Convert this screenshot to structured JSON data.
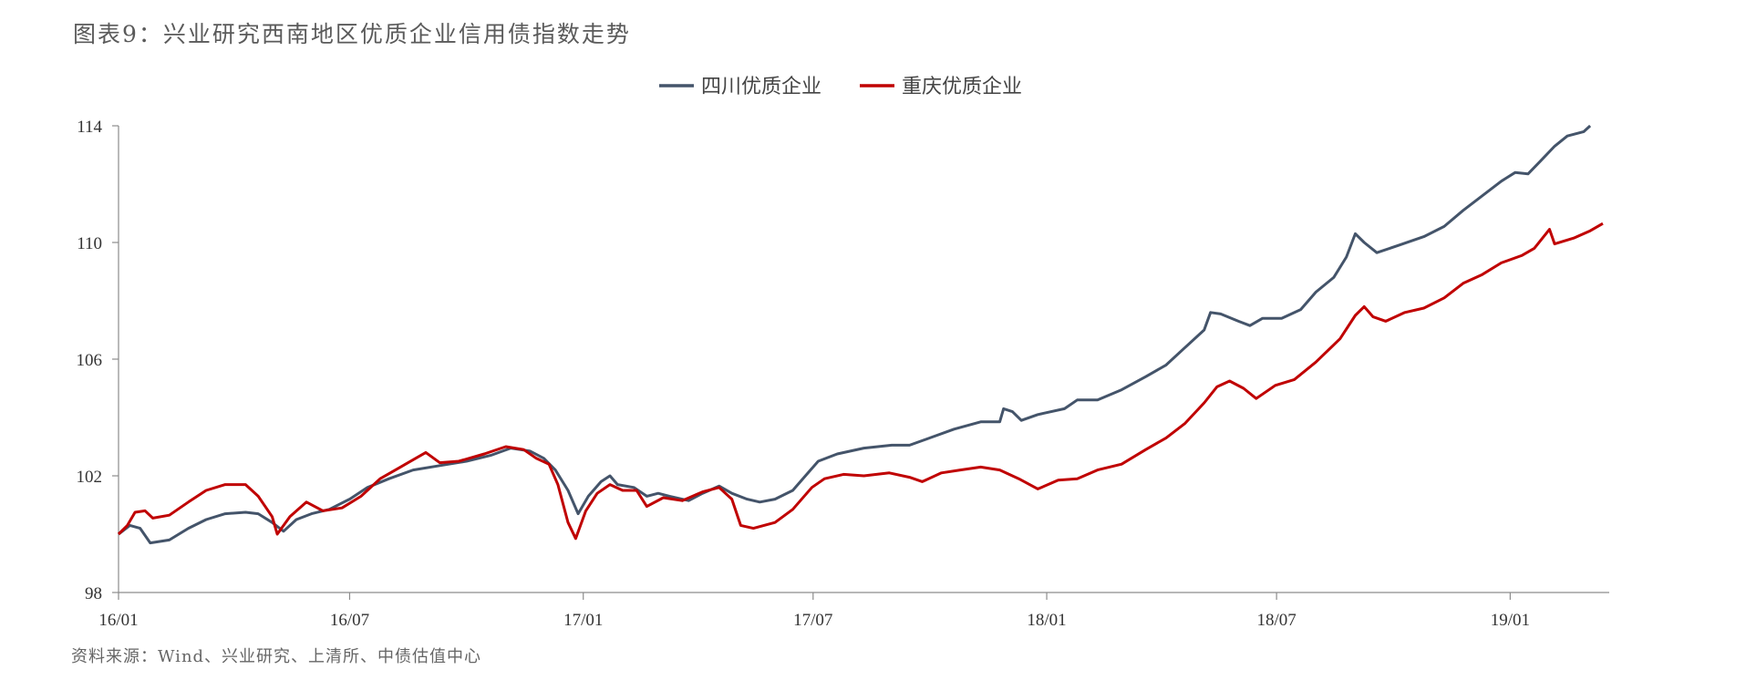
{
  "title": "图表9：兴业研究西南地区优质企业信用债指数走势",
  "source": "资料来源：Wind、兴业研究、上清所、中债估值中心",
  "chart_data": {
    "type": "line",
    "ylim": [
      98,
      114
    ],
    "y_ticks": [
      "114",
      "110",
      "106",
      "102",
      "98"
    ],
    "y_tick_values": [
      114,
      110,
      106,
      102,
      98
    ],
    "x_ticks": [
      "16/01",
      "16/07",
      "17/01",
      "17/07",
      "18/01",
      "18/07",
      "19/01"
    ],
    "x_tick_dates": [
      "2016-01-01",
      "2016-07-01",
      "2017-01-01",
      "2017-07-01",
      "2018-01-01",
      "2018-07-01",
      "2019-01-01"
    ],
    "x_range": [
      "2016-01-01",
      "2019-03-20"
    ],
    "legend_position": "top-center",
    "series": [
      {
        "name": "四川优质企业",
        "color": "#44546a",
        "points": [
          [
            "2016-01-01",
            100.0
          ],
          [
            "2016-01-10",
            100.3
          ],
          [
            "2016-01-18",
            100.2
          ],
          [
            "2016-01-26",
            99.7
          ],
          [
            "2016-02-10",
            99.8
          ],
          [
            "2016-02-25",
            100.2
          ],
          [
            "2016-03-10",
            100.5
          ],
          [
            "2016-03-25",
            100.7
          ],
          [
            "2016-04-10",
            100.75
          ],
          [
            "2016-04-20",
            100.7
          ],
          [
            "2016-05-01",
            100.4
          ],
          [
            "2016-05-10",
            100.1
          ],
          [
            "2016-05-20",
            100.5
          ],
          [
            "2016-06-01",
            100.7
          ],
          [
            "2016-06-15",
            100.85
          ],
          [
            "2016-07-01",
            101.2
          ],
          [
            "2016-07-15",
            101.6
          ],
          [
            "2016-08-01",
            101.9
          ],
          [
            "2016-08-20",
            102.2
          ],
          [
            "2016-09-10",
            102.35
          ],
          [
            "2016-10-01",
            102.5
          ],
          [
            "2016-10-20",
            102.7
          ],
          [
            "2016-11-05",
            102.95
          ],
          [
            "2016-11-20",
            102.85
          ],
          [
            "2016-12-01",
            102.6
          ],
          [
            "2016-12-10",
            102.2
          ],
          [
            "2016-12-20",
            101.5
          ],
          [
            "2016-12-28",
            100.7
          ],
          [
            "2017-01-05",
            101.3
          ],
          [
            "2017-01-15",
            101.8
          ],
          [
            "2017-01-22",
            102.0
          ],
          [
            "2017-01-28",
            101.7
          ],
          [
            "2017-02-10",
            101.6
          ],
          [
            "2017-02-20",
            101.3
          ],
          [
            "2017-03-01",
            101.4
          ],
          [
            "2017-03-10",
            101.3
          ],
          [
            "2017-03-25",
            101.15
          ],
          [
            "2017-04-05",
            101.4
          ],
          [
            "2017-04-18",
            101.65
          ],
          [
            "2017-04-28",
            101.4
          ],
          [
            "2017-05-10",
            101.2
          ],
          [
            "2017-05-20",
            101.1
          ],
          [
            "2017-06-01",
            101.2
          ],
          [
            "2017-06-15",
            101.5
          ],
          [
            "2017-06-25",
            102.0
          ],
          [
            "2017-07-05",
            102.5
          ],
          [
            "2017-07-20",
            102.75
          ],
          [
            "2017-08-10",
            102.95
          ],
          [
            "2017-09-01",
            103.05
          ],
          [
            "2017-09-15",
            103.05
          ],
          [
            "2017-10-01",
            103.3
          ],
          [
            "2017-10-20",
            103.6
          ],
          [
            "2017-11-10",
            103.85
          ],
          [
            "2017-11-25",
            103.85
          ],
          [
            "2017-11-28",
            104.3
          ],
          [
            "2017-12-05",
            104.2
          ],
          [
            "2017-12-12",
            103.9
          ],
          [
            "2017-12-25",
            104.1
          ],
          [
            "2018-01-15",
            104.3
          ],
          [
            "2018-01-25",
            104.6
          ],
          [
            "2018-02-10",
            104.6
          ],
          [
            "2018-03-01",
            104.95
          ],
          [
            "2018-03-20",
            105.4
          ],
          [
            "2018-04-05",
            105.8
          ],
          [
            "2018-04-20",
            106.4
          ],
          [
            "2018-05-05",
            107.0
          ],
          [
            "2018-05-10",
            107.6
          ],
          [
            "2018-05-18",
            107.55
          ],
          [
            "2018-06-01",
            107.3
          ],
          [
            "2018-06-10",
            107.15
          ],
          [
            "2018-06-20",
            107.4
          ],
          [
            "2018-07-05",
            107.4
          ],
          [
            "2018-07-20",
            107.7
          ],
          [
            "2018-08-01",
            108.3
          ],
          [
            "2018-08-15",
            108.8
          ],
          [
            "2018-08-25",
            109.5
          ],
          [
            "2018-09-01",
            110.3
          ],
          [
            "2018-09-08",
            110.0
          ],
          [
            "2018-09-18",
            109.65
          ],
          [
            "2018-10-05",
            109.9
          ],
          [
            "2018-10-25",
            110.2
          ],
          [
            "2018-11-10",
            110.55
          ],
          [
            "2018-11-25",
            111.1
          ],
          [
            "2018-12-10",
            111.6
          ],
          [
            "2018-12-25",
            112.1
          ],
          [
            "2019-01-05",
            112.4
          ],
          [
            "2019-01-15",
            112.35
          ],
          [
            "2019-01-25",
            112.8
          ],
          [
            "2019-02-05",
            113.3
          ],
          [
            "2019-02-15",
            113.65
          ],
          [
            "2019-02-28",
            113.8
          ],
          [
            "2019-03-05",
            114.0
          ]
        ]
      },
      {
        "name": "重庆优质企业",
        "color": "#c00000",
        "points": [
          [
            "2016-01-01",
            100.0
          ],
          [
            "2016-01-08",
            100.3
          ],
          [
            "2016-01-14",
            100.75
          ],
          [
            "2016-01-22",
            100.8
          ],
          [
            "2016-01-28",
            100.55
          ],
          [
            "2016-02-10",
            100.65
          ],
          [
            "2016-02-25",
            101.1
          ],
          [
            "2016-03-10",
            101.5
          ],
          [
            "2016-03-25",
            101.7
          ],
          [
            "2016-04-10",
            101.7
          ],
          [
            "2016-04-20",
            101.3
          ],
          [
            "2016-05-01",
            100.6
          ],
          [
            "2016-05-05",
            100.0
          ],
          [
            "2016-05-15",
            100.6
          ],
          [
            "2016-05-28",
            101.1
          ],
          [
            "2016-06-10",
            100.8
          ],
          [
            "2016-06-25",
            100.9
          ],
          [
            "2016-07-10",
            101.3
          ],
          [
            "2016-07-25",
            101.9
          ],
          [
            "2016-08-10",
            102.3
          ],
          [
            "2016-08-30",
            102.8
          ],
          [
            "2016-09-10",
            102.45
          ],
          [
            "2016-09-25",
            102.5
          ],
          [
            "2016-10-15",
            102.75
          ],
          [
            "2016-11-01",
            103.0
          ],
          [
            "2016-11-15",
            102.9
          ],
          [
            "2016-11-25",
            102.6
          ],
          [
            "2016-12-05",
            102.4
          ],
          [
            "2016-12-12",
            101.7
          ],
          [
            "2016-12-20",
            100.4
          ],
          [
            "2016-12-26",
            99.85
          ],
          [
            "2017-01-03",
            100.8
          ],
          [
            "2017-01-12",
            101.4
          ],
          [
            "2017-01-22",
            101.7
          ],
          [
            "2017-02-01",
            101.5
          ],
          [
            "2017-02-12",
            101.5
          ],
          [
            "2017-02-20",
            100.95
          ],
          [
            "2017-03-05",
            101.25
          ],
          [
            "2017-03-20",
            101.15
          ],
          [
            "2017-04-05",
            101.45
          ],
          [
            "2017-04-18",
            101.6
          ],
          [
            "2017-04-28",
            101.2
          ],
          [
            "2017-05-05",
            100.3
          ],
          [
            "2017-05-15",
            100.2
          ],
          [
            "2017-06-01",
            100.4
          ],
          [
            "2017-06-15",
            100.85
          ],
          [
            "2017-06-30",
            101.6
          ],
          [
            "2017-07-10",
            101.9
          ],
          [
            "2017-07-25",
            102.05
          ],
          [
            "2017-08-10",
            102.0
          ],
          [
            "2017-08-30",
            102.1
          ],
          [
            "2017-09-15",
            101.95
          ],
          [
            "2017-09-25",
            101.8
          ],
          [
            "2017-10-10",
            102.1
          ],
          [
            "2017-10-25",
            102.2
          ],
          [
            "2017-11-10",
            102.3
          ],
          [
            "2017-11-25",
            102.2
          ],
          [
            "2017-12-10",
            101.9
          ],
          [
            "2017-12-25",
            101.55
          ],
          [
            "2018-01-10",
            101.85
          ],
          [
            "2018-01-25",
            101.9
          ],
          [
            "2018-02-10",
            102.2
          ],
          [
            "2018-03-01",
            102.4
          ],
          [
            "2018-03-20",
            102.9
          ],
          [
            "2018-04-05",
            103.3
          ],
          [
            "2018-04-20",
            103.8
          ],
          [
            "2018-05-05",
            104.5
          ],
          [
            "2018-05-15",
            105.05
          ],
          [
            "2018-05-25",
            105.25
          ],
          [
            "2018-06-05",
            105.0
          ],
          [
            "2018-06-15",
            104.65
          ],
          [
            "2018-06-30",
            105.1
          ],
          [
            "2018-07-15",
            105.3
          ],
          [
            "2018-08-01",
            105.9
          ],
          [
            "2018-08-20",
            106.7
          ],
          [
            "2018-09-01",
            107.5
          ],
          [
            "2018-09-08",
            107.8
          ],
          [
            "2018-09-15",
            107.45
          ],
          [
            "2018-09-25",
            107.3
          ],
          [
            "2018-10-10",
            107.6
          ],
          [
            "2018-10-25",
            107.75
          ],
          [
            "2018-11-10",
            108.1
          ],
          [
            "2018-11-25",
            108.6
          ],
          [
            "2018-12-10",
            108.9
          ],
          [
            "2018-12-25",
            109.3
          ],
          [
            "2019-01-10",
            109.55
          ],
          [
            "2019-01-20",
            109.8
          ],
          [
            "2019-02-01",
            110.45
          ],
          [
            "2019-02-05",
            109.95
          ],
          [
            "2019-02-20",
            110.15
          ],
          [
            "2019-03-05",
            110.4
          ],
          [
            "2019-03-15",
            110.65
          ]
        ]
      }
    ]
  }
}
